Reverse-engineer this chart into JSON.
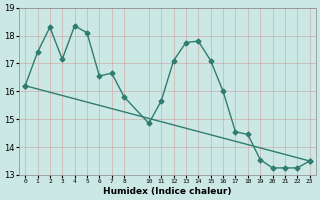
{
  "xlabel": "Humidex (Indice chaleur)",
  "background_color": "#cce8e4",
  "grid_color": "#bbddda",
  "line_color": "#2e7d6e",
  "xlim": [
    -0.5,
    23.5
  ],
  "ylim": [
    13,
    19
  ],
  "yticks": [
    13,
    14,
    15,
    16,
    17,
    18,
    19
  ],
  "xticks": [
    0,
    1,
    2,
    3,
    4,
    5,
    6,
    7,
    8,
    10,
    11,
    12,
    13,
    14,
    15,
    16,
    17,
    18,
    19,
    20,
    21,
    22,
    23
  ],
  "series1_x": [
    0,
    1,
    2,
    3,
    4,
    5,
    6,
    7,
    8,
    10,
    11,
    12,
    13,
    14,
    15,
    16,
    17,
    18,
    19,
    20,
    21,
    22,
    23
  ],
  "series1_y": [
    16.2,
    17.4,
    18.3,
    17.15,
    18.35,
    18.1,
    16.55,
    16.65,
    15.8,
    14.85,
    15.65,
    17.1,
    17.75,
    17.8,
    17.1,
    16.0,
    14.55,
    14.45,
    13.55,
    13.25,
    13.25,
    13.25,
    13.5
  ],
  "series2_x": [
    0,
    23
  ],
  "series2_y": [
    16.2,
    13.5
  ],
  "marker": "D",
  "markersize": 2.5,
  "linewidth": 1.0
}
